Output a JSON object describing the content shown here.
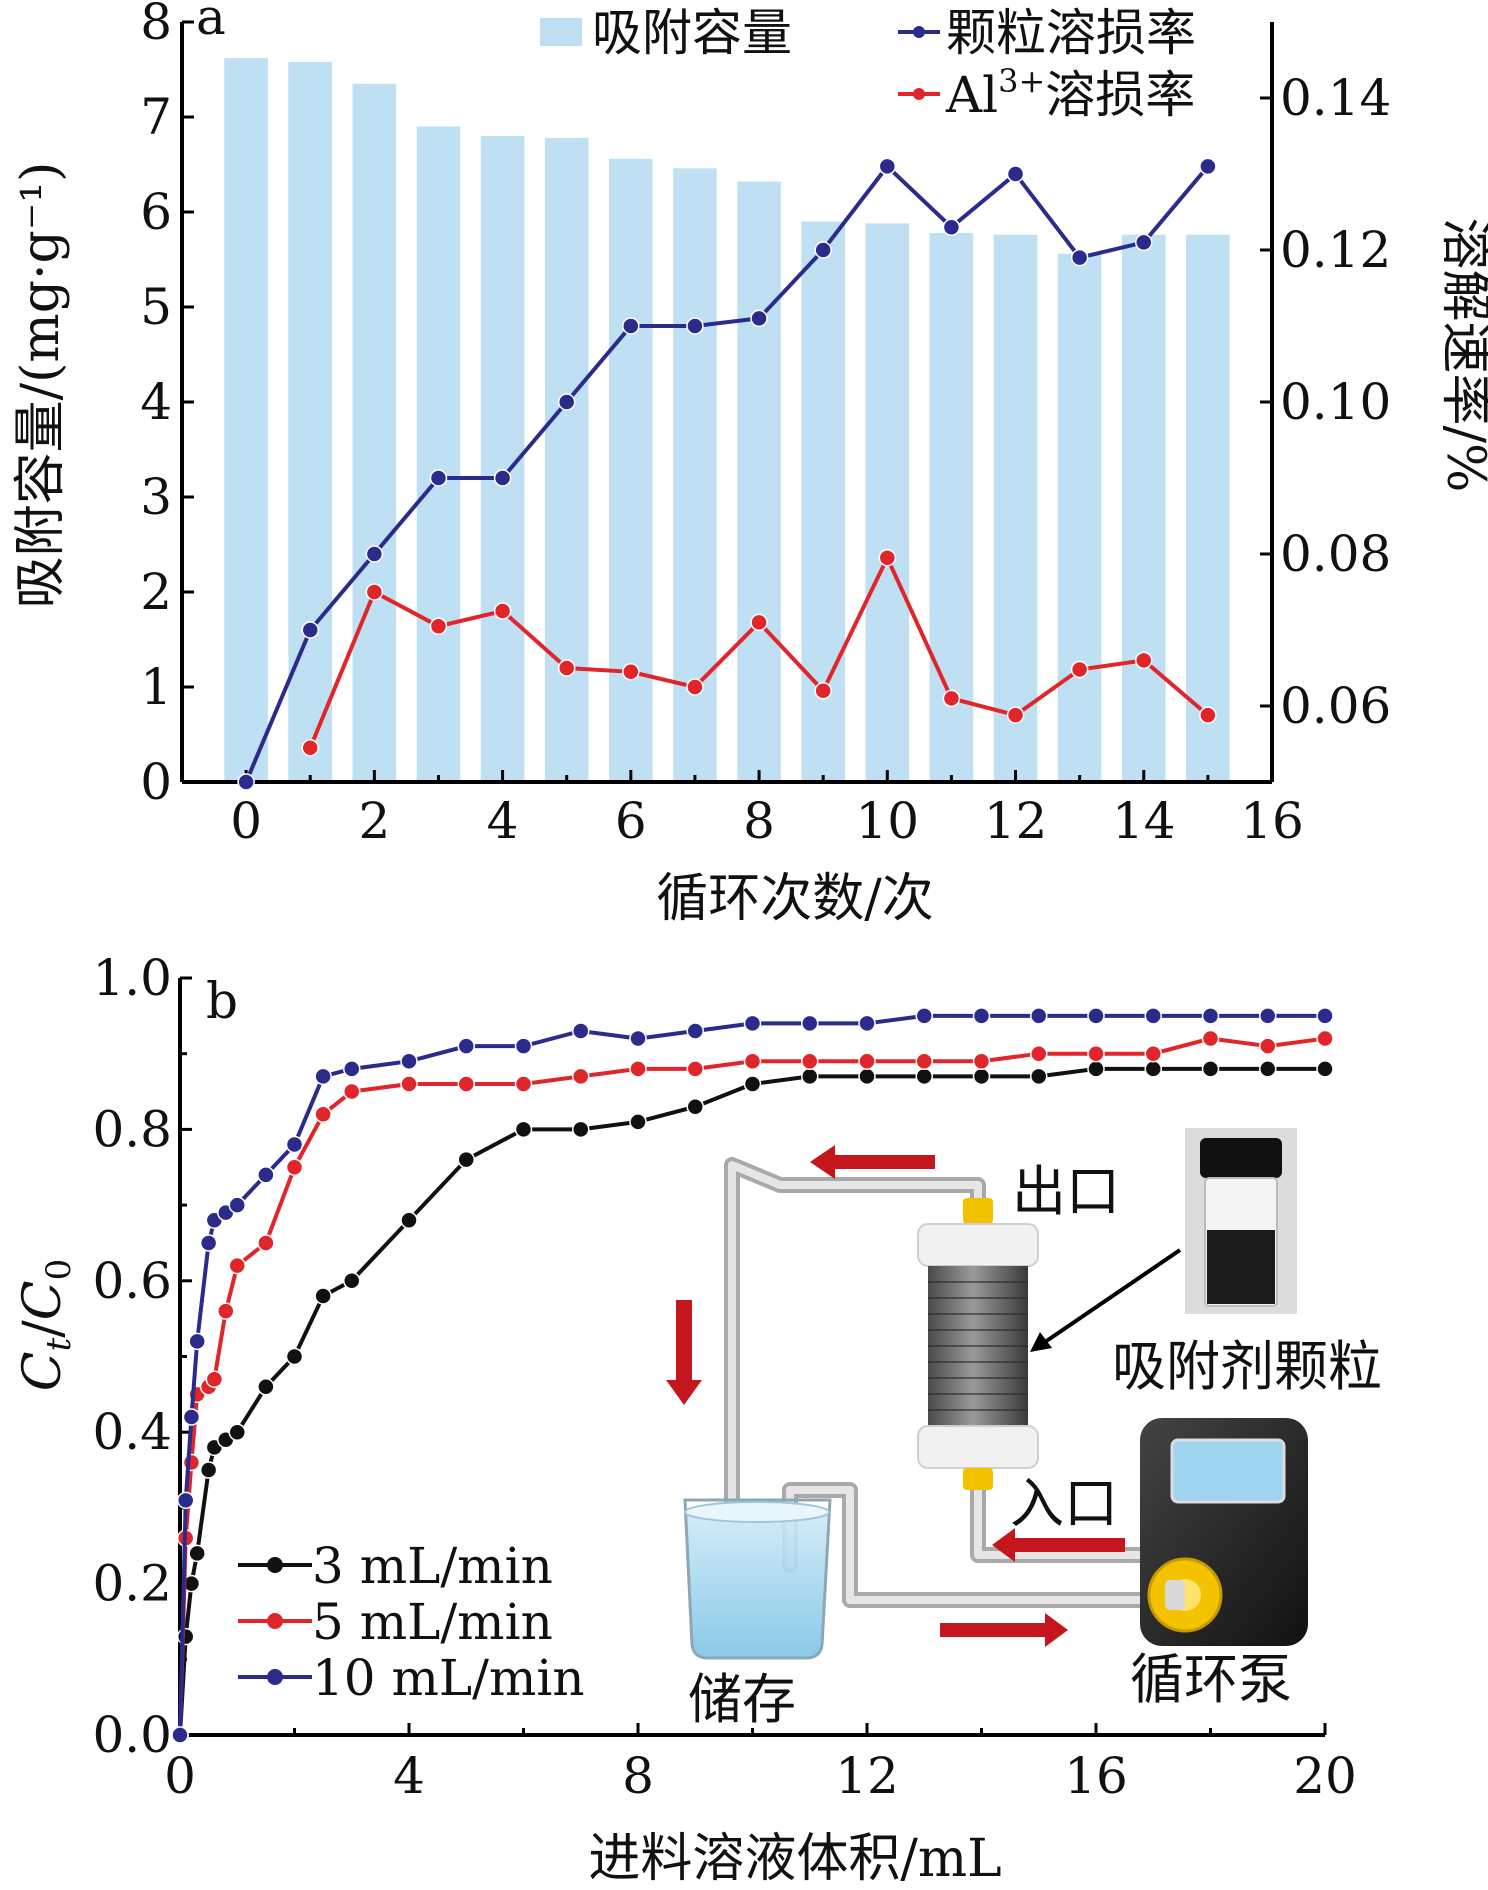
{
  "chart_data": [
    {
      "panel_label": "a",
      "type": "bar+line",
      "xlabel": "循环次数/次",
      "ylabel_left": "吸附容量/(mg·g⁻¹)",
      "ylabel_right": "溶解速率/%",
      "xlim": [
        -1,
        16
      ],
      "ylim_left": [
        0,
        8
      ],
      "ylim_right": [
        0.05,
        0.15
      ],
      "xticks": [
        "0",
        "2",
        "4",
        "6",
        "8",
        "10",
        "12",
        "14",
        "16"
      ],
      "yticks_left": [
        "0",
        "1",
        "2",
        "3",
        "4",
        "5",
        "6",
        "7",
        "8"
      ],
      "yticks_right": [
        "0.06",
        "0.08",
        "0.10",
        "0.12",
        "0.14"
      ],
      "legend_position": "top-right",
      "bars": {
        "name": "吸附容量",
        "color": "#bfe0f2",
        "x": [
          0,
          1,
          2,
          3,
          4,
          5,
          6,
          7,
          8,
          9,
          10,
          11,
          12,
          13,
          14,
          15
        ],
        "values": [
          7.62,
          7.58,
          7.35,
          6.9,
          6.8,
          6.78,
          6.56,
          6.46,
          6.32,
          5.9,
          5.88,
          5.78,
          5.76,
          5.56,
          5.76,
          5.76
        ]
      },
      "lines": [
        {
          "name": "颗粒溶损率",
          "color": "#2b2b8c",
          "x": [
            0,
            1,
            2,
            3,
            4,
            5,
            6,
            7,
            8,
            9,
            10,
            11,
            12,
            13,
            14,
            15
          ],
          "values": [
            0.05,
            0.07,
            0.08,
            0.09,
            0.09,
            0.1,
            0.11,
            0.11,
            0.111,
            0.12,
            0.131,
            0.123,
            0.13,
            0.119,
            0.121,
            0.131
          ]
        },
        {
          "name_prefix": "Al",
          "name_sup": "3+",
          "name_suffix": "溶损率",
          "color": "#e0262b",
          "x": [
            1,
            2,
            3,
            4,
            5,
            6,
            7,
            8,
            9,
            10,
            11,
            12,
            13,
            14,
            15
          ],
          "values": [
            0.0545,
            0.075,
            0.0705,
            0.0725,
            0.065,
            0.0645,
            0.0625,
            0.071,
            0.062,
            0.0795,
            0.061,
            0.0588,
            0.0648,
            0.066,
            0.0588
          ]
        }
      ]
    },
    {
      "panel_label": "b",
      "type": "line",
      "xlabel": "进料溶液体积/mL",
      "ylabel_italic_base": "C",
      "ylabel_italic_sub": "t",
      "ylabel_slash": "/",
      "ylabel_italic_base2": "C",
      "ylabel_sub2": "0",
      "xlim": [
        0,
        20
      ],
      "ylim": [
        0,
        1.0
      ],
      "xticks": [
        "0",
        "4",
        "8",
        "12",
        "16",
        "20"
      ],
      "yticks": [
        "0.0",
        "0.2",
        "0.4",
        "0.6",
        "0.8",
        "1.0"
      ],
      "legend_position": "bottom-left",
      "series": [
        {
          "name": "3 mL/min",
          "color": "#111111",
          "x": [
            0,
            0.1,
            0.2,
            0.3,
            0.5,
            0.6,
            0.8,
            1,
            1.5,
            2,
            2.5,
            3,
            4,
            5,
            6,
            7,
            8,
            9,
            10,
            11,
            12,
            13,
            14,
            15,
            16,
            17,
            18,
            19,
            20
          ],
          "y": [
            0,
            0.13,
            0.2,
            0.24,
            0.35,
            0.38,
            0.39,
            0.4,
            0.46,
            0.5,
            0.58,
            0.6,
            0.68,
            0.76,
            0.8,
            0.8,
            0.81,
            0.83,
            0.86,
            0.87,
            0.87,
            0.87,
            0.87,
            0.87,
            0.88,
            0.88,
            0.88,
            0.88,
            0.88
          ]
        },
        {
          "name": "5 mL/min",
          "color": "#e0262b",
          "x": [
            0,
            0.1,
            0.2,
            0.3,
            0.5,
            0.6,
            0.8,
            1,
            1.5,
            2,
            2.5,
            3,
            4,
            5,
            6,
            7,
            8,
            9,
            10,
            11,
            12,
            13,
            14,
            15,
            16,
            17,
            18,
            19,
            20
          ],
          "y": [
            0,
            0.26,
            0.36,
            0.45,
            0.46,
            0.47,
            0.56,
            0.62,
            0.65,
            0.75,
            0.82,
            0.85,
            0.86,
            0.86,
            0.86,
            0.87,
            0.88,
            0.88,
            0.89,
            0.89,
            0.89,
            0.89,
            0.89,
            0.9,
            0.9,
            0.9,
            0.92,
            0.91,
            0.92
          ]
        },
        {
          "name": "10 mL/min",
          "color": "#2b2b8c",
          "x": [
            0,
            0.1,
            0.2,
            0.3,
            0.5,
            0.6,
            0.8,
            1,
            1.5,
            2,
            2.5,
            3,
            4,
            5,
            6,
            7,
            8,
            9,
            10,
            11,
            12,
            13,
            14,
            15,
            16,
            17,
            18,
            19,
            20
          ],
          "y": [
            0,
            0.31,
            0.42,
            0.52,
            0.65,
            0.68,
            0.69,
            0.7,
            0.74,
            0.78,
            0.87,
            0.88,
            0.89,
            0.91,
            0.91,
            0.93,
            0.92,
            0.93,
            0.94,
            0.94,
            0.94,
            0.95,
            0.95,
            0.95,
            0.95,
            0.95,
            0.95,
            0.95,
            0.95
          ]
        }
      ],
      "inset_labels": {
        "outlet": "出口",
        "adsorbent": "吸附剂颗粒",
        "inlet": "入口",
        "storage": "储存",
        "pump": "循环泵"
      }
    }
  ]
}
